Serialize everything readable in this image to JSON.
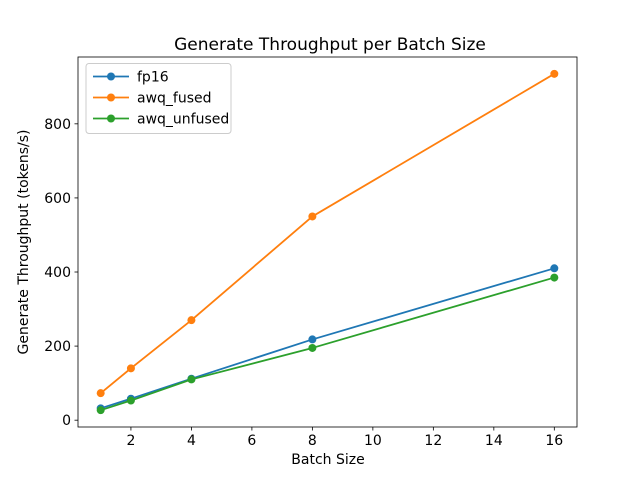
{
  "chart_data": {
    "type": "line",
    "title": "Generate Throughput per Batch Size",
    "xlabel": "Batch Size",
    "ylabel": "Generate Throughput (tokens/s)",
    "x": [
      1,
      2,
      4,
      8,
      16
    ],
    "series": [
      {
        "name": "fp16",
        "color": "#1f77b4",
        "values": [
          32,
          58,
          112,
          218,
          410
        ]
      },
      {
        "name": "awq_fused",
        "color": "#ff7f0e",
        "values": [
          73,
          140,
          270,
          550,
          935
        ]
      },
      {
        "name": "awq_unfused",
        "color": "#2ca02c",
        "values": [
          27,
          53,
          110,
          195,
          385
        ]
      }
    ],
    "xticks": [
      2,
      4,
      6,
      8,
      10,
      12,
      14,
      16
    ],
    "yticks": [
      0,
      200,
      400,
      600,
      800
    ],
    "xlim": [
      0.25,
      16.75
    ],
    "ylim": [
      -18.4,
      980.4
    ],
    "marker": "o",
    "grid": false,
    "legend_position": "upper left",
    "background_color": "#ffffff",
    "spine_color": "#000000",
    "legend_border_color": "#cccccc"
  }
}
